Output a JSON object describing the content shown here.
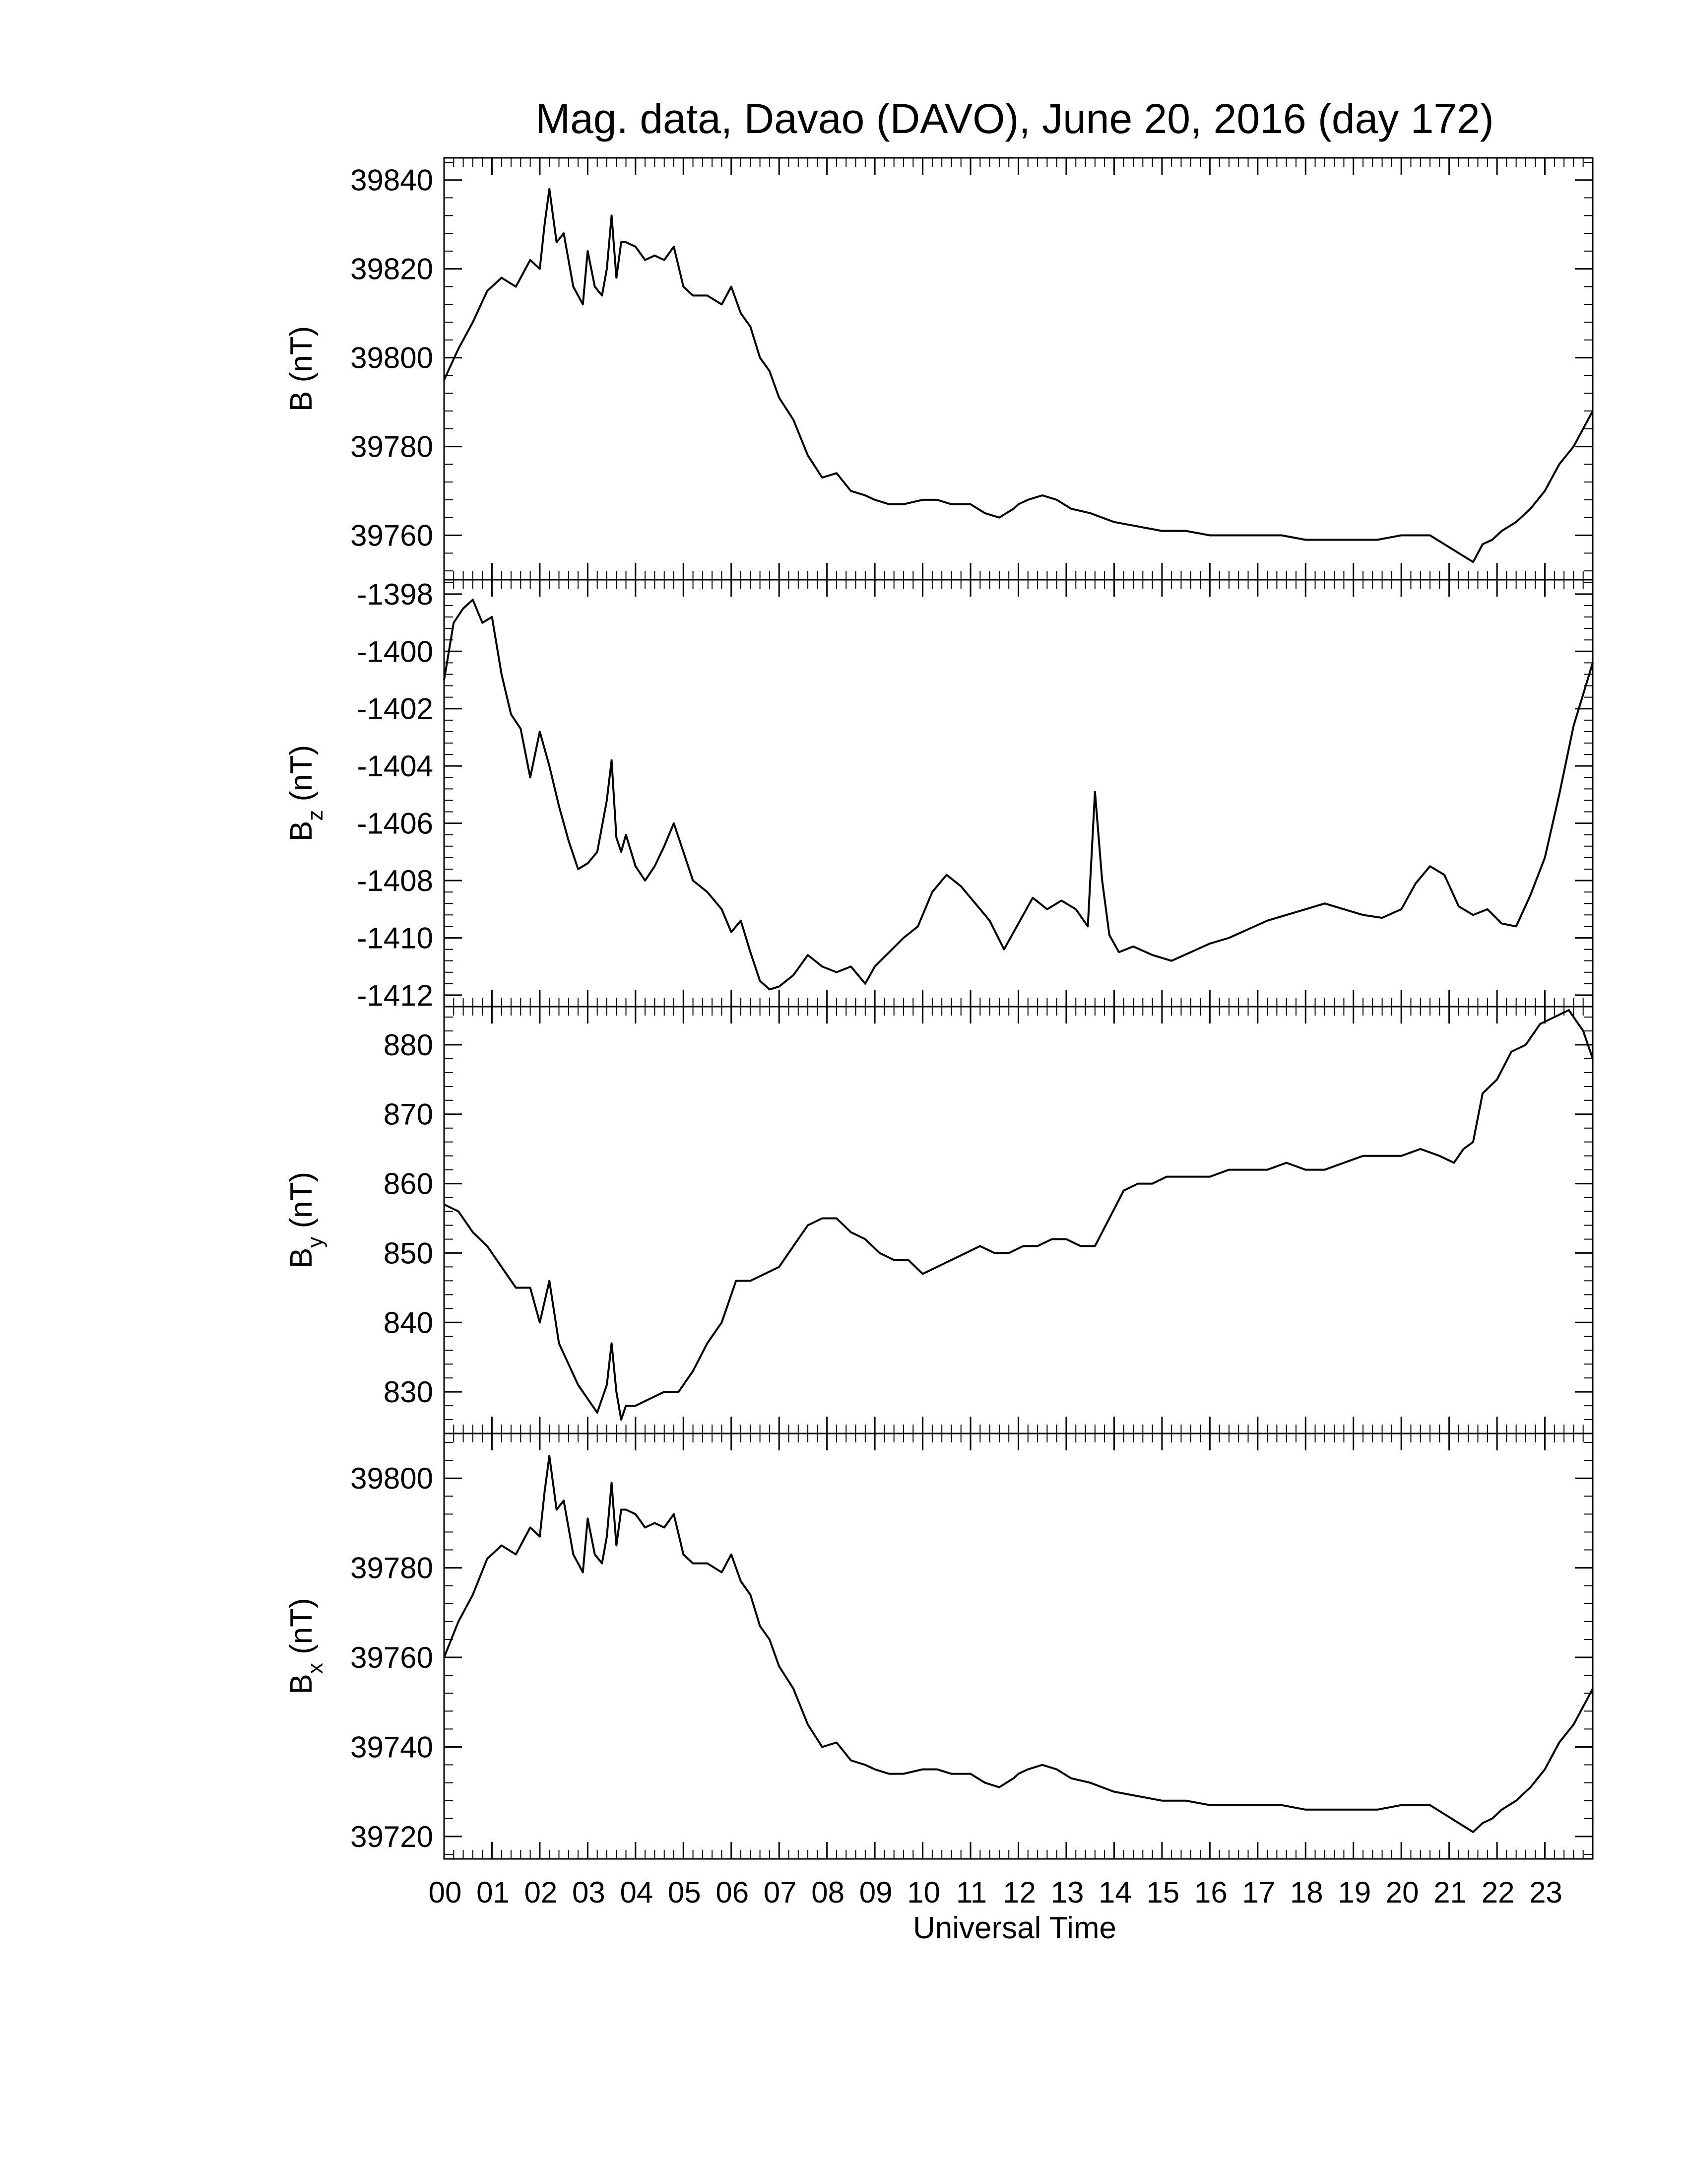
{
  "title": "Mag. data, Davao (DAVO), June 20, 2016 (day 172)",
  "xlabel": "Universal Time",
  "x_tick_labels": [
    "00",
    "01",
    "02",
    "03",
    "04",
    "05",
    "06",
    "07",
    "08",
    "09",
    "10",
    "11",
    "12",
    "13",
    "14",
    "15",
    "16",
    "17",
    "18",
    "19",
    "20",
    "21",
    "22",
    "23"
  ],
  "line_color": "#000000",
  "chart_data": [
    {
      "type": "line",
      "panel": "B",
      "ylabel_main": "B",
      "ylabel_sub": "",
      "ylabel_unit": " (nT)",
      "xlim": [
        0,
        24
      ],
      "ylim": [
        39750,
        39845
      ],
      "yticks": [
        39760,
        39780,
        39800,
        39820,
        39840
      ],
      "series": [
        {
          "x": [
            0,
            0.3,
            0.6,
            0.9,
            1.2,
            1.5,
            1.8,
            2.0,
            2.1,
            2.2,
            2.35,
            2.5,
            2.7,
            2.9,
            3.0,
            3.15,
            3.3,
            3.4,
            3.5,
            3.6,
            3.7,
            3.8,
            4.0,
            4.2,
            4.4,
            4.6,
            4.8,
            5.0,
            5.2,
            5.5,
            5.8,
            6.0,
            6.2,
            6.4,
            6.6,
            6.8,
            7.0,
            7.3,
            7.6,
            7.9,
            8.2,
            8.5,
            8.8,
            9.0,
            9.3,
            9.6,
            10.0,
            10.3,
            10.6,
            11.0,
            11.3,
            11.6,
            11.9,
            12.0,
            12.2,
            12.5,
            12.8,
            13.1,
            13.5,
            14.0,
            14.5,
            15.0,
            15.5,
            16.0,
            16.5,
            17.0,
            17.5,
            18.0,
            18.5,
            19.0,
            19.5,
            20.0,
            20.3,
            20.6,
            20.9,
            21.2,
            21.5,
            21.7,
            21.9,
            22.1,
            22.4,
            22.7,
            23.0,
            23.3,
            23.6,
            24.0
          ],
          "y": [
            39795,
            39802,
            39808,
            39815,
            39818,
            39816,
            39822,
            39820,
            39830,
            39838,
            39826,
            39828,
            39816,
            39812,
            39824,
            39816,
            39814,
            39820,
            39832,
            39818,
            39826,
            39826,
            39825,
            39822,
            39823,
            39822,
            39825,
            39816,
            39814,
            39814,
            39812,
            39816,
            39810,
            39807,
            39800,
            39797,
            39791,
            39786,
            39778,
            39773,
            39774,
            39770,
            39769,
            39768,
            39767,
            39767,
            39768,
            39768,
            39767,
            39767,
            39765,
            39764,
            39766,
            39767,
            39768,
            39769,
            39768,
            39766,
            39765,
            39763,
            39762,
            39761,
            39761,
            39760,
            39760,
            39760,
            39760,
            39759,
            39759,
            39759,
            39759,
            39760,
            39760,
            39760,
            39758,
            39756,
            39754,
            39758,
            39759,
            39761,
            39763,
            39766,
            39770,
            39776,
            39780,
            39788
          ]
        }
      ]
    },
    {
      "type": "line",
      "panel": "Bz",
      "ylabel_main": "B",
      "ylabel_sub": "z",
      "ylabel_unit": " (nT)",
      "xlim": [
        0,
        24
      ],
      "ylim": [
        -1412.4,
        -1397.5
      ],
      "yticks": [
        -1398,
        -1400,
        -1402,
        -1404,
        -1406,
        -1408,
        -1410,
        -1412
      ],
      "series": [
        {
          "x": [
            0,
            0.2,
            0.4,
            0.6,
            0.8,
            1.0,
            1.2,
            1.4,
            1.6,
            1.8,
            2.0,
            2.2,
            2.4,
            2.6,
            2.8,
            3.0,
            3.2,
            3.4,
            3.5,
            3.6,
            3.7,
            3.8,
            4.0,
            4.2,
            4.4,
            4.6,
            4.8,
            5.0,
            5.2,
            5.5,
            5.8,
            6.0,
            6.2,
            6.4,
            6.6,
            6.8,
            7.0,
            7.3,
            7.6,
            7.9,
            8.2,
            8.5,
            8.8,
            9.0,
            9.3,
            9.6,
            9.9,
            10.2,
            10.5,
            10.8,
            11.1,
            11.4,
            11.7,
            12.0,
            12.3,
            12.6,
            12.9,
            13.2,
            13.45,
            13.6,
            13.75,
            13.9,
            14.1,
            14.4,
            14.8,
            15.2,
            15.6,
            16.0,
            16.4,
            16.8,
            17.2,
            17.6,
            18.0,
            18.4,
            18.8,
            19.2,
            19.6,
            20.0,
            20.3,
            20.6,
            20.9,
            21.2,
            21.5,
            21.8,
            22.1,
            22.4,
            22.7,
            23.0,
            23.3,
            23.6,
            24.0
          ],
          "y": [
            -1401.0,
            -1399.0,
            -1398.5,
            -1398.2,
            -1399.0,
            -1398.8,
            -1400.8,
            -1402.2,
            -1402.7,
            -1404.4,
            -1402.8,
            -1404.0,
            -1405.4,
            -1406.6,
            -1407.6,
            -1407.4,
            -1407.0,
            -1405.2,
            -1403.8,
            -1406.5,
            -1407.0,
            -1406.4,
            -1407.5,
            -1408.0,
            -1407.5,
            -1406.8,
            -1406.0,
            -1407.0,
            -1408.0,
            -1408.4,
            -1409.0,
            -1409.8,
            -1409.4,
            -1410.5,
            -1411.5,
            -1411.8,
            -1411.7,
            -1411.3,
            -1410.6,
            -1411.0,
            -1411.2,
            -1411.0,
            -1411.6,
            -1411.0,
            -1410.5,
            -1410.0,
            -1409.6,
            -1408.4,
            -1407.8,
            -1408.2,
            -1408.8,
            -1409.4,
            -1410.4,
            -1409.5,
            -1408.6,
            -1409.0,
            -1408.7,
            -1409.0,
            -1409.6,
            -1404.9,
            -1408.0,
            -1409.9,
            -1410.5,
            -1410.3,
            -1410.6,
            -1410.8,
            -1410.5,
            -1410.2,
            -1410.0,
            -1409.7,
            -1409.4,
            -1409.2,
            -1409.0,
            -1408.8,
            -1409.0,
            -1409.2,
            -1409.3,
            -1409.0,
            -1408.1,
            -1407.5,
            -1407.8,
            -1408.9,
            -1409.2,
            -1409.0,
            -1409.5,
            -1409.6,
            -1408.5,
            -1407.2,
            -1405.0,
            -1402.6,
            -1400.4
          ]
        }
      ]
    },
    {
      "type": "line",
      "panel": "By",
      "ylabel_main": "B",
      "ylabel_sub": "y",
      "ylabel_unit": " (nT)",
      "xlim": [
        0,
        24
      ],
      "ylim": [
        824,
        885.5
      ],
      "yticks": [
        830,
        840,
        850,
        860,
        870,
        880
      ],
      "series": [
        {
          "x": [
            0,
            0.3,
            0.6,
            0.9,
            1.2,
            1.5,
            1.8,
            2.0,
            2.2,
            2.4,
            2.6,
            2.8,
            3.0,
            3.2,
            3.4,
            3.5,
            3.6,
            3.7,
            3.8,
            4.0,
            4.3,
            4.6,
            4.9,
            5.2,
            5.5,
            5.8,
            6.1,
            6.4,
            6.7,
            7.0,
            7.3,
            7.6,
            7.9,
            8.2,
            8.5,
            8.8,
            9.1,
            9.4,
            9.7,
            10.0,
            10.3,
            10.6,
            10.9,
            11.2,
            11.5,
            11.8,
            12.1,
            12.4,
            12.7,
            13.0,
            13.3,
            13.6,
            13.9,
            14.2,
            14.5,
            14.8,
            15.1,
            15.4,
            15.7,
            16.0,
            16.4,
            16.8,
            17.2,
            17.6,
            18.0,
            18.4,
            18.8,
            19.2,
            19.6,
            20.0,
            20.4,
            20.8,
            21.1,
            21.3,
            21.5,
            21.7,
            22.0,
            22.3,
            22.6,
            22.9,
            23.2,
            23.5,
            23.8,
            24.0
          ],
          "y": [
            857,
            856,
            853,
            851,
            848,
            845,
            845,
            840,
            846,
            837,
            834,
            831,
            829,
            827,
            831,
            837,
            830,
            826,
            828,
            828,
            829,
            830,
            830,
            833,
            837,
            840,
            846,
            846,
            847,
            848,
            851,
            854,
            855,
            855,
            853,
            852,
            850,
            849,
            849,
            847,
            848,
            849,
            850,
            851,
            850,
            850,
            851,
            851,
            852,
            852,
            851,
            851,
            855,
            859,
            860,
            860,
            861,
            861,
            861,
            861,
            862,
            862,
            862,
            863,
            862,
            862,
            863,
            864,
            864,
            864,
            865,
            864,
            863,
            865,
            866,
            873,
            875,
            879,
            880,
            883,
            884,
            885,
            882,
            878
          ]
        }
      ]
    },
    {
      "type": "line",
      "panel": "Bx",
      "ylabel_main": "B",
      "ylabel_sub": "x",
      "ylabel_unit": " (nT)",
      "xlim": [
        0,
        24
      ],
      "ylim": [
        39715,
        39810
      ],
      "yticks": [
        39720,
        39740,
        39760,
        39780,
        39800
      ],
      "series": [
        {
          "x": [
            0,
            0.3,
            0.6,
            0.9,
            1.2,
            1.5,
            1.8,
            2.0,
            2.1,
            2.2,
            2.35,
            2.5,
            2.7,
            2.9,
            3.0,
            3.15,
            3.3,
            3.4,
            3.5,
            3.6,
            3.7,
            3.8,
            4.0,
            4.2,
            4.4,
            4.6,
            4.8,
            5.0,
            5.2,
            5.5,
            5.8,
            6.0,
            6.2,
            6.4,
            6.6,
            6.8,
            7.0,
            7.3,
            7.6,
            7.9,
            8.2,
            8.5,
            8.8,
            9.0,
            9.3,
            9.6,
            10.0,
            10.3,
            10.6,
            11.0,
            11.3,
            11.6,
            11.9,
            12.0,
            12.2,
            12.5,
            12.8,
            13.1,
            13.5,
            14.0,
            14.5,
            15.0,
            15.5,
            16.0,
            16.5,
            17.0,
            17.5,
            18.0,
            18.5,
            19.0,
            19.5,
            20.0,
            20.3,
            20.6,
            20.9,
            21.2,
            21.5,
            21.7,
            21.9,
            22.1,
            22.4,
            22.7,
            23.0,
            23.3,
            23.6,
            24.0
          ],
          "y": [
            39760,
            39768,
            39774,
            39782,
            39785,
            39783,
            39789,
            39787,
            39797,
            39805,
            39793,
            39795,
            39783,
            39779,
            39791,
            39783,
            39781,
            39787,
            39799,
            39785,
            39793,
            39793,
            39792,
            39789,
            39790,
            39789,
            39792,
            39783,
            39781,
            39781,
            39779,
            39783,
            39777,
            39774,
            39767,
            39764,
            39758,
            39753,
            39745,
            39740,
            39741,
            39737,
            39736,
            39735,
            39734,
            39734,
            39735,
            39735,
            39734,
            39734,
            39732,
            39731,
            39733,
            39734,
            39735,
            39736,
            39735,
            39733,
            39732,
            39730,
            39729,
            39728,
            39728,
            39727,
            39727,
            39727,
            39727,
            39726,
            39726,
            39726,
            39726,
            39727,
            39727,
            39727,
            39725,
            39723,
            39721,
            39723,
            39724,
            39726,
            39728,
            39731,
            39735,
            39741,
            39745,
            39753
          ]
        }
      ]
    }
  ]
}
